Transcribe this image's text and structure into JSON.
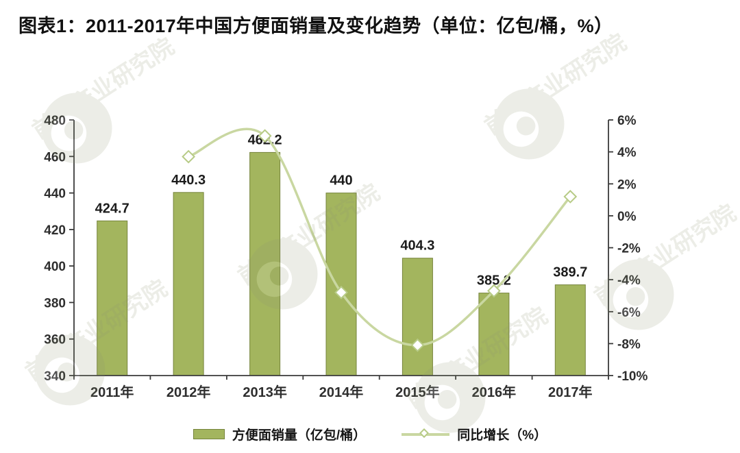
{
  "page": {
    "title": "图表1：2011-2017年中国方便面销量及变化趋势（单位：亿包/桶，%）"
  },
  "watermark": {
    "text": "前瞻产业研究院"
  },
  "chart_data": {
    "type": "bar+line",
    "title": "2011-2017年中国方便面销量及变化趋势",
    "unit_note": "单位：亿包/桶，%",
    "categories": [
      "2011年",
      "2012年",
      "2013年",
      "2014年",
      "2015年",
      "2016年",
      "2017年"
    ],
    "series": [
      {
        "name": "方便面销量（亿包/桶）",
        "type": "bar",
        "axis": "left",
        "values": [
          424.7,
          440.3,
          462.2,
          440,
          404.3,
          385.2,
          389.7
        ],
        "color": "#a3b55e",
        "border_color": "#76843c"
      },
      {
        "name": "同比增长（%）",
        "type": "line",
        "axis": "right",
        "values": [
          null,
          3.7,
          5.0,
          -4.8,
          -8.1,
          -4.7,
          1.2
        ],
        "color": "#c9d7a1",
        "marker_color": "#b7cb86",
        "smooth": true
      }
    ],
    "left_axis": {
      "max": 480,
      "min": 340,
      "step": 20,
      "ticks": [
        "480",
        "460",
        "440",
        "420",
        "400",
        "380",
        "360",
        "340"
      ]
    },
    "right_axis": {
      "max": 6,
      "min": -10,
      "step": 2,
      "ticks": [
        "6%",
        "4%",
        "2%",
        "0%",
        "-2%",
        "-4%",
        "-6%",
        "-8%",
        "-10%"
      ]
    },
    "grid": false,
    "legend_position": "bottom"
  }
}
